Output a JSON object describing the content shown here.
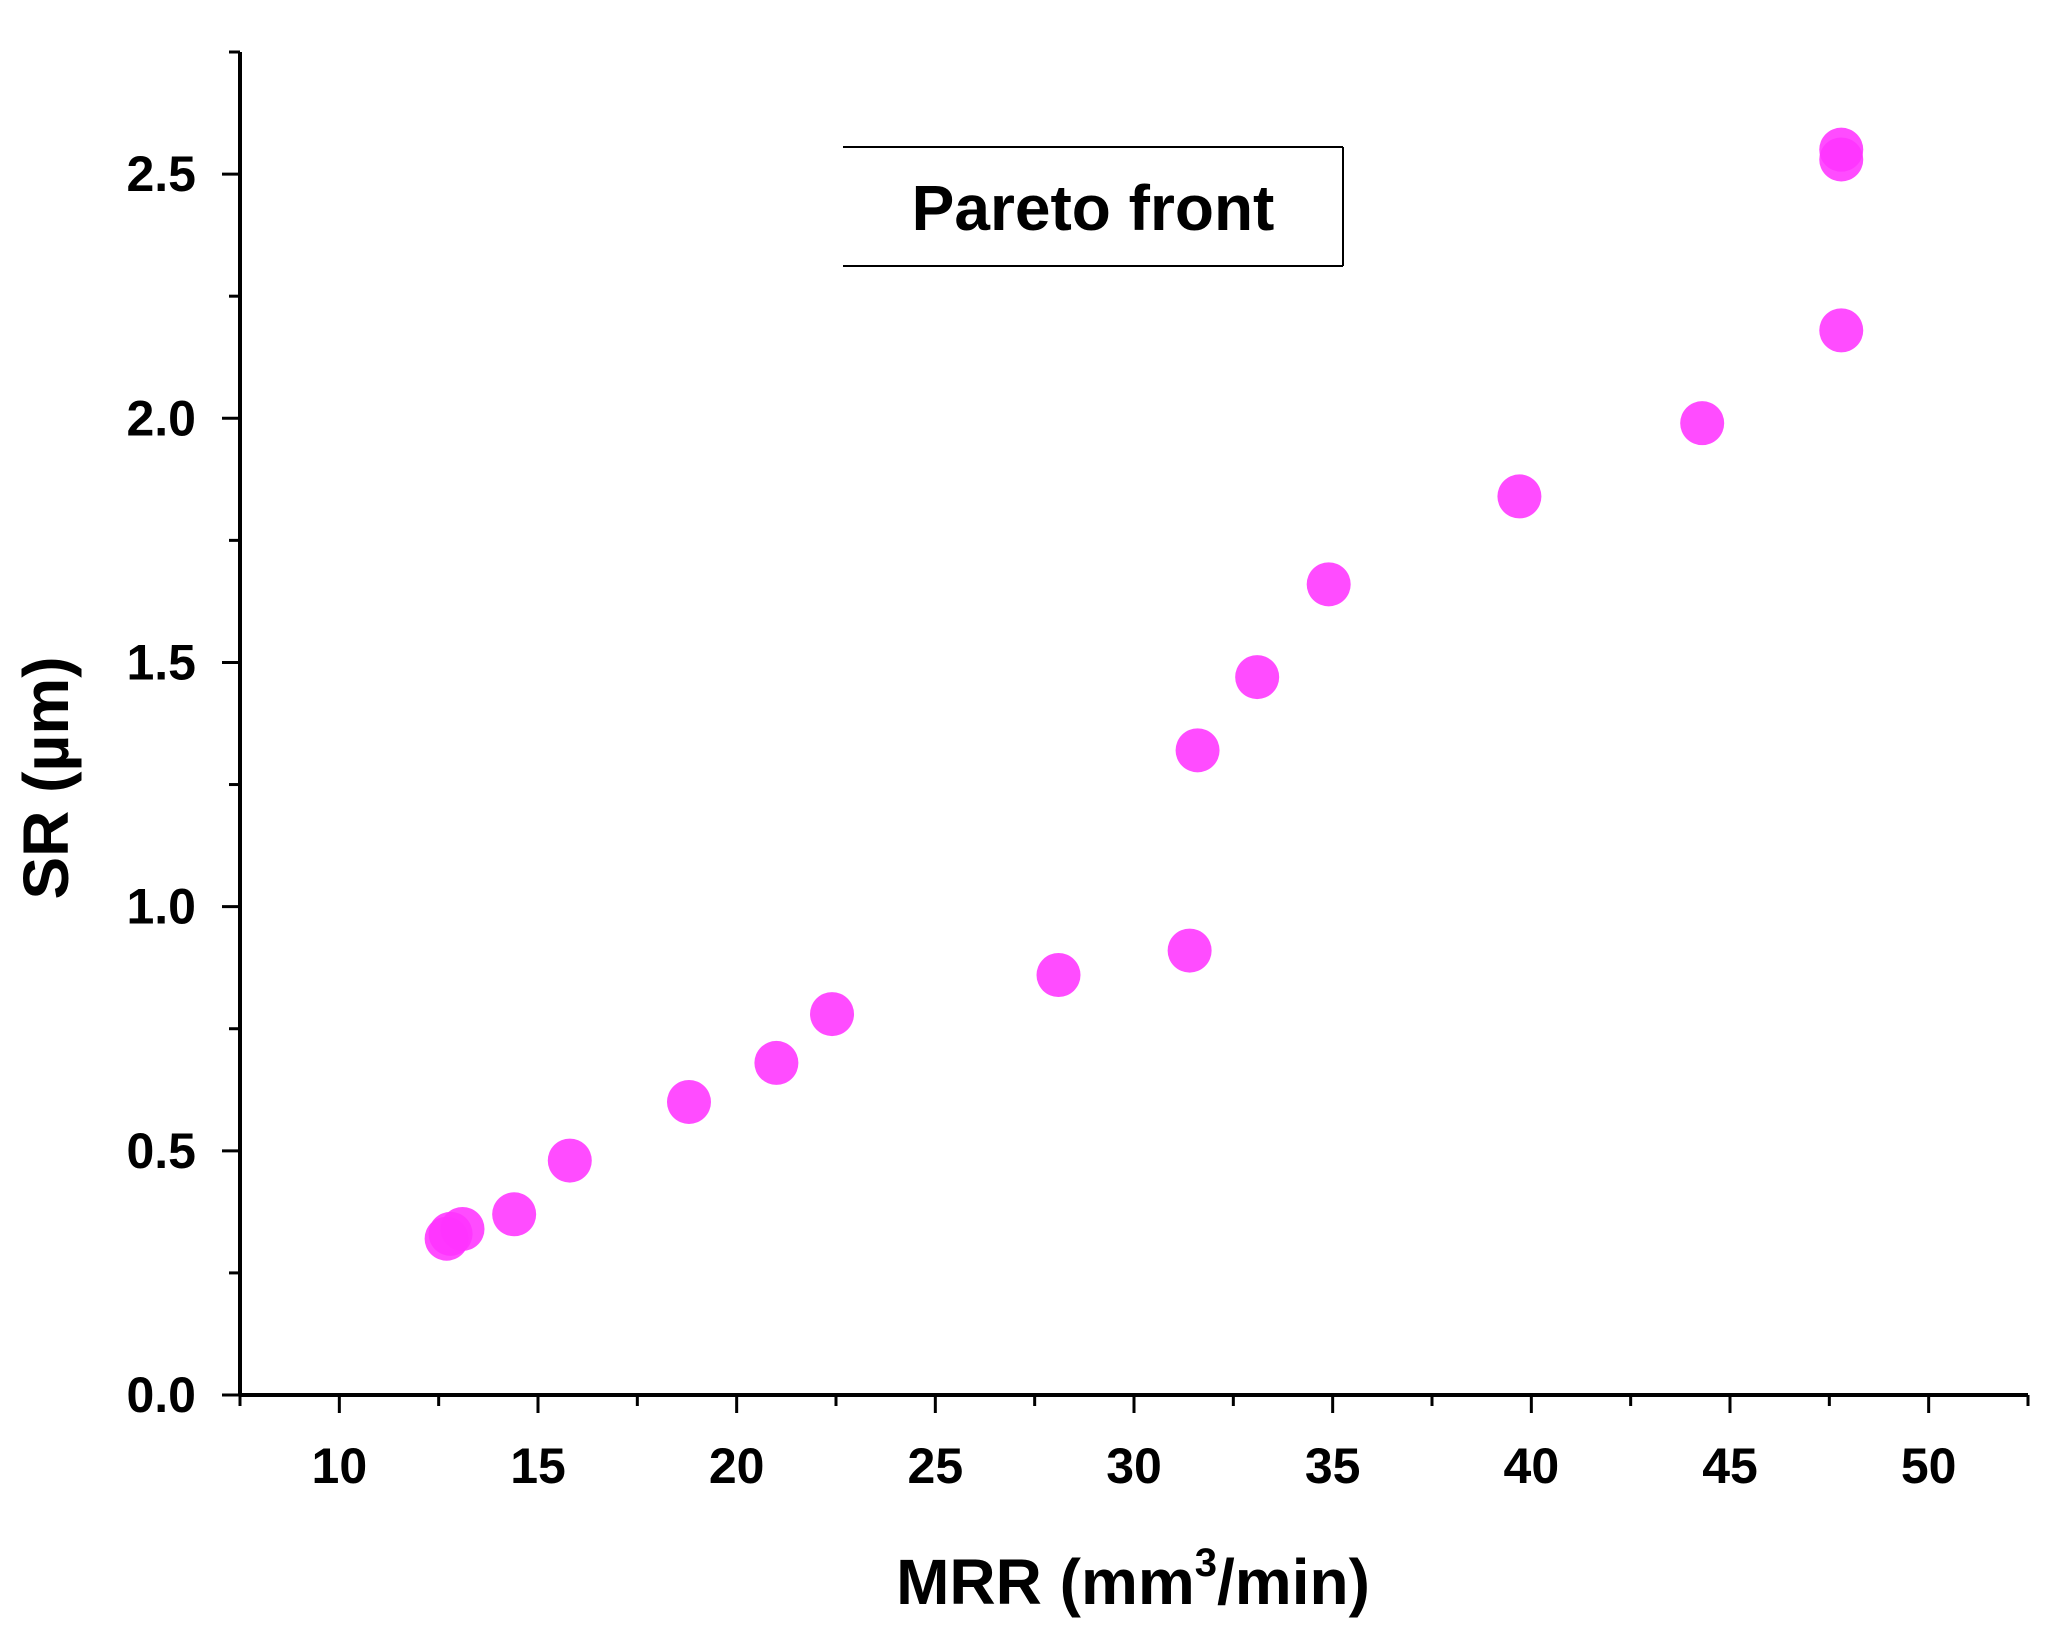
{
  "chart_data": {
    "type": "scatter",
    "title": "",
    "xlabel": "MRR (mm",
    "xlabel_sup": "3",
    "xlabel_end": "/min)",
    "ylabel": "SR (µm)",
    "xlim": [
      7.5,
      52.5
    ],
    "ylim": [
      0.0,
      2.75
    ],
    "xticks": [
      "10",
      "15",
      "20",
      "25",
      "30",
      "35",
      "40",
      "45",
      "50"
    ],
    "yticks": [
      "0.0",
      "0.5",
      "1.0",
      "1.5",
      "2.0",
      "2.5"
    ],
    "grid": false,
    "legend_position": "top-center",
    "series": [
      {
        "name": "Pareto front",
        "color": "#ff33ff",
        "marker": "circle",
        "points": [
          {
            "x": 12.7,
            "y": 0.32
          },
          {
            "x": 12.8,
            "y": 0.33
          },
          {
            "x": 13.1,
            "y": 0.34
          },
          {
            "x": 14.4,
            "y": 0.37
          },
          {
            "x": 15.8,
            "y": 0.48
          },
          {
            "x": 18.8,
            "y": 0.6
          },
          {
            "x": 21.0,
            "y": 0.68
          },
          {
            "x": 22.4,
            "y": 0.78
          },
          {
            "x": 28.1,
            "y": 0.86
          },
          {
            "x": 31.4,
            "y": 0.91
          },
          {
            "x": 31.6,
            "y": 1.32
          },
          {
            "x": 33.1,
            "y": 1.47
          },
          {
            "x": 34.9,
            "y": 1.66
          },
          {
            "x": 39.7,
            "y": 1.84
          },
          {
            "x": 44.3,
            "y": 1.99
          },
          {
            "x": 47.8,
            "y": 2.18
          },
          {
            "x": 47.8,
            "y": 2.53
          },
          {
            "x": 47.8,
            "y": 2.55
          }
        ]
      }
    ]
  }
}
